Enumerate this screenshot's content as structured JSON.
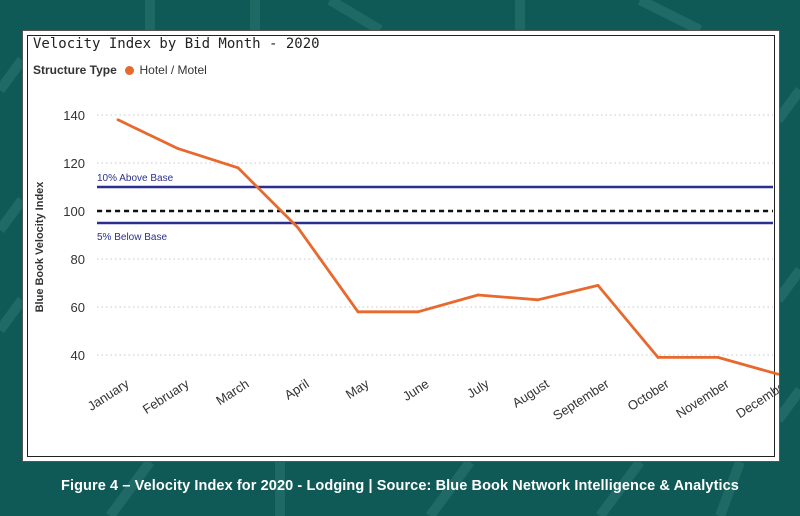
{
  "caption": "Figure 4 – Velocity Index for 2020 - Lodging | Source: Blue Book Network Intelligence & Analytics",
  "colors": {
    "background": "#0f5a57",
    "series": "#e8692d",
    "reference": "#2b2f8f",
    "baseline": "#111111",
    "grid": "#c8c8c8"
  },
  "chart_data": {
    "type": "line",
    "title": "Velocity Index by Bid Month - 2020",
    "legend_title": "Structure Type",
    "legend_position": "top-left",
    "ylabel": "Blue Book Velocity Index",
    "xlabel": "",
    "ylim": [
      30,
      148
    ],
    "yticks": [
      40,
      60,
      80,
      100,
      120,
      140
    ],
    "grid": true,
    "categories": [
      "January",
      "February",
      "March",
      "April",
      "May",
      "June",
      "July",
      "August",
      "September",
      "October",
      "November",
      "December"
    ],
    "series": [
      {
        "name": "Hotel / Motel",
        "values": [
          138,
          126,
          118,
          93,
          58,
          58,
          65,
          63,
          69,
          39,
          39,
          32
        ]
      }
    ],
    "reference_lines": [
      {
        "value": 110,
        "label": "10% Above Base",
        "style": "solid"
      },
      {
        "value": 100,
        "label": "",
        "style": "dashed"
      },
      {
        "value": 95,
        "label": "5% Below Base",
        "style": "solid"
      }
    ]
  }
}
